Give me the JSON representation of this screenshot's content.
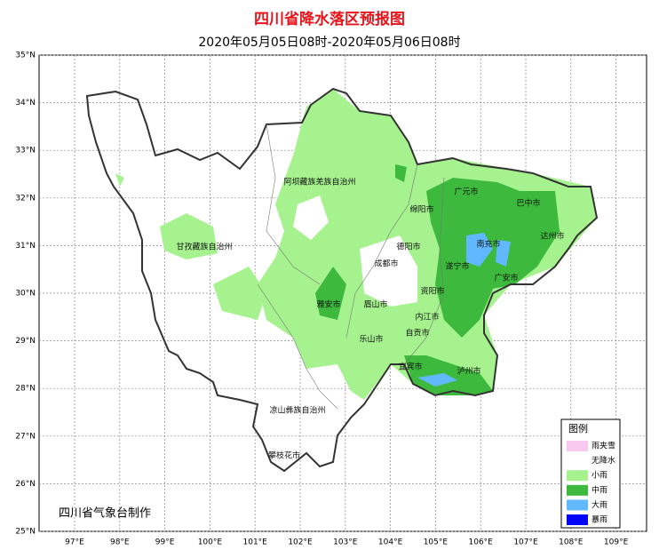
{
  "title": "四川省降水落区预报图",
  "subtitle": "2020年05月05日08时-2020年05月06日08时",
  "longitude_labels": [
    "97°E",
    "98°E",
    "99°E",
    "100°E",
    "101°E",
    "102°E",
    "103°E",
    "104°E",
    "105°E",
    "106°E",
    "107°E",
    "108°E",
    "109°E"
  ],
  "latitude_labels": [
    "35°N",
    "34°N",
    "33°N",
    "32°N",
    "31°N",
    "30°N",
    "29°N",
    "28°N",
    "27°N",
    "26°N",
    "25°N"
  ],
  "places": [
    "阿坝藏族羌族自治州",
    "甘孜藏族自治州",
    "广元市",
    "巴中市",
    "绵阳市",
    "达州市",
    "南充市",
    "德阳市",
    "成都市",
    "遂宁市",
    "广安市",
    "资阳市",
    "雅安市",
    "眉山市",
    "内江市",
    "自贡市",
    "乐山市",
    "宜宾市",
    "泸州市",
    "凉山彝族自治州",
    "攀枝花市"
  ],
  "legend": {
    "title": "图例",
    "items": [
      {
        "label": "雨夹雪",
        "color": "#f8c8f0"
      },
      {
        "label": "无降水",
        "color": "#ffffff"
      },
      {
        "label": "小雨",
        "color": "#a6f28f"
      },
      {
        "label": "中雨",
        "color": "#3dba3d"
      },
      {
        "label": "大雨",
        "color": "#61b8ff"
      },
      {
        "label": "暴雨",
        "color": "#0000fe"
      }
    ]
  },
  "credit": "四川省气象台制作"
}
